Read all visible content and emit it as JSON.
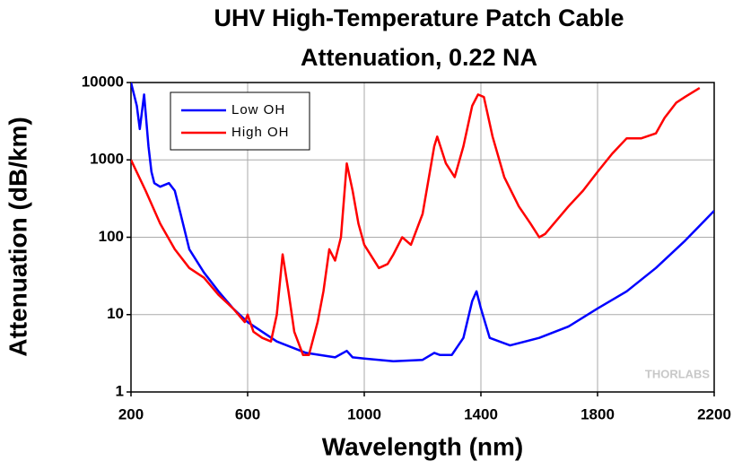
{
  "chart_data": {
    "type": "line",
    "title": [
      "UHV High-Temperature Patch Cable",
      "Attenuation, 0.22 NA"
    ],
    "x_label": "Wavelength (nm)",
    "y_label": "Attenuation (dB/km)",
    "watermark": "THORLABS",
    "y_scale": "log",
    "grid": true,
    "legend_position": "upper left",
    "xlim": [
      200,
      2200
    ],
    "xticks": [
      200,
      600,
      1000,
      1400,
      1800,
      2200
    ],
    "ylim": [
      1,
      10000
    ],
    "yticks": [
      1,
      10,
      100,
      1000,
      10000
    ],
    "series": [
      {
        "name": "Low OH",
        "color": "#0000ff",
        "x": [
          200,
          220,
          230,
          245,
          260,
          270,
          280,
          300,
          330,
          350,
          370,
          400,
          450,
          500,
          550,
          600,
          650,
          700,
          800,
          900,
          940,
          960,
          1000,
          1100,
          1200,
          1240,
          1260,
          1300,
          1340,
          1370,
          1385,
          1400,
          1430,
          1500,
          1600,
          1700,
          1800,
          1900,
          2000,
          2100,
          2200
        ],
        "values": [
          10000,
          5000,
          2500,
          7000,
          1500,
          700,
          500,
          450,
          500,
          400,
          200,
          70,
          35,
          20,
          12,
          8,
          6,
          4.5,
          3.2,
          2.8,
          3.4,
          2.8,
          2.7,
          2.5,
          2.6,
          3.2,
          3.0,
          3.0,
          5,
          15,
          20,
          12,
          5,
          4,
          5,
          7,
          12,
          20,
          40,
          90,
          220
        ]
      },
      {
        "name": "High OH",
        "color": "#ff0000",
        "x": [
          200,
          250,
          300,
          350,
          400,
          450,
          500,
          550,
          590,
          600,
          620,
          650,
          680,
          700,
          720,
          740,
          760,
          790,
          810,
          840,
          860,
          880,
          900,
          920,
          940,
          960,
          980,
          1000,
          1050,
          1080,
          1100,
          1130,
          1160,
          1200,
          1240,
          1250,
          1280,
          1310,
          1340,
          1370,
          1390,
          1410,
          1440,
          1480,
          1530,
          1570,
          1600,
          1620,
          1650,
          1700,
          1750,
          1800,
          1850,
          1900,
          1950,
          2000,
          2030,
          2070,
          2100,
          2150
        ],
        "values": [
          1000,
          400,
          150,
          70,
          40,
          30,
          18,
          12,
          8,
          10,
          6,
          5,
          4.5,
          10,
          60,
          20,
          6,
          3,
          3,
          8,
          20,
          70,
          50,
          100,
          900,
          400,
          150,
          80,
          40,
          45,
          60,
          100,
          80,
          200,
          1500,
          2000,
          900,
          600,
          1500,
          5000,
          7000,
          6500,
          2000,
          600,
          250,
          150,
          100,
          110,
          150,
          250,
          400,
          700,
          1200,
          1900,
          1900,
          2200,
          3500,
          5500,
          6500,
          8500
        ]
      }
    ]
  }
}
